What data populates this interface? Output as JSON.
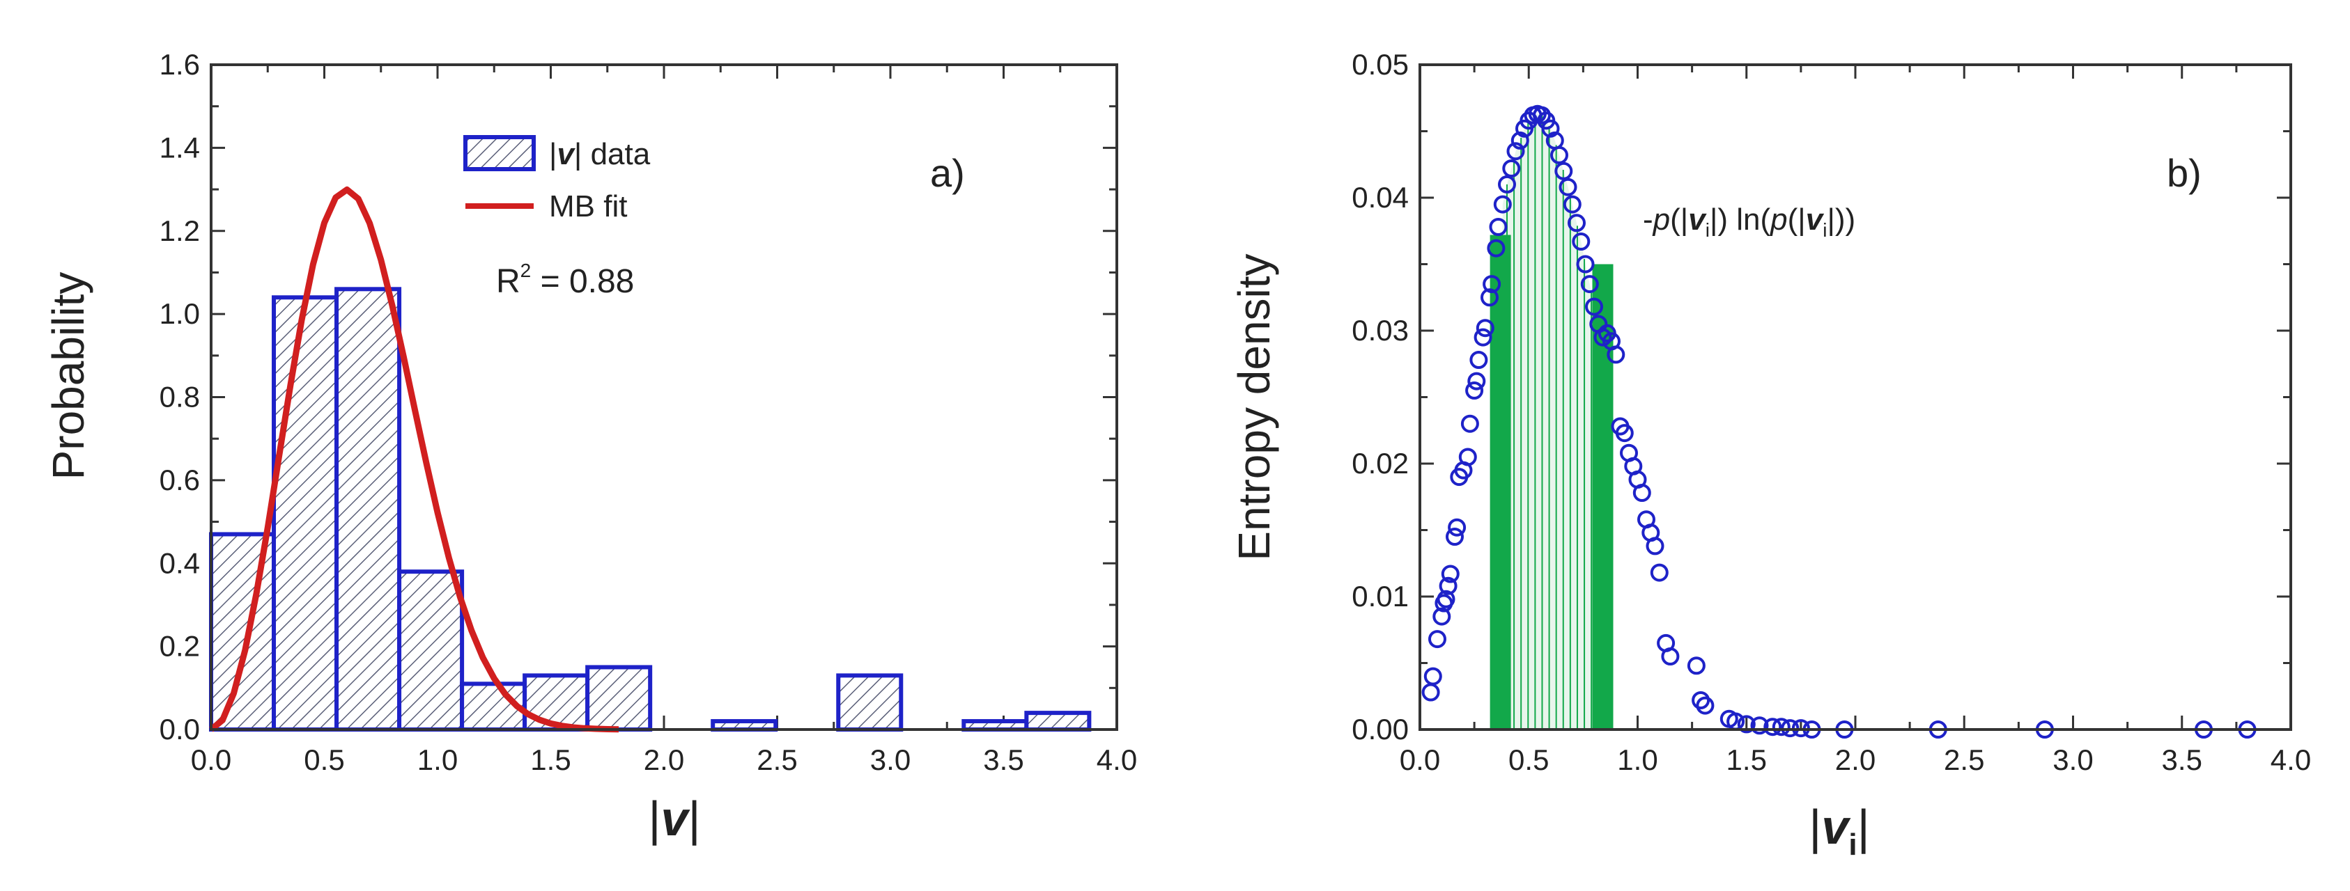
{
  "colors": {
    "bar_edge": "#1e22c8",
    "hatch": "#5a5f78",
    "bar_fill": "#ffffff",
    "fit_line": "#d11f1f",
    "marker": "#1e22c8",
    "green_bar": "#12a84a",
    "light_fill": "#e8f5ec",
    "axis": "#333333"
  },
  "chart_data": [
    {
      "id": "a",
      "type": "bar",
      "panel_label": "a)",
      "xlabel": "|v|",
      "ylabel": "Probability",
      "xlim": [
        0.0,
        4.0
      ],
      "ylim": [
        0.0,
        1.6
      ],
      "xticks": [
        "0.0",
        "0.5",
        "1.0",
        "1.5",
        "2.0",
        "2.5",
        "3.0",
        "3.5",
        "4.0"
      ],
      "yticks": [
        "0.0",
        "0.2",
        "0.4",
        "0.6",
        "0.8",
        "1.0",
        "1.2",
        "1.4",
        "1.6"
      ],
      "bin_edges": [
        0.0,
        0.277,
        0.554,
        0.831,
        1.108,
        1.385,
        1.662,
        1.939,
        2.216,
        2.493,
        2.77,
        3.047,
        3.324,
        3.601,
        3.878
      ],
      "values": [
        0.47,
        1.04,
        1.06,
        0.38,
        0.11,
        0.13,
        0.15,
        0.0,
        0.02,
        0.0,
        0.13,
        0.0,
        0.02,
        0.04
      ],
      "legend": [
        {
          "prefix": "|",
          "bold_symbol": "v",
          "suffix": "| data"
        },
        {
          "label": "MB fit"
        }
      ],
      "annotation": {
        "r_symbol": "R",
        "exponent": "2",
        "text": " = 0.88"
      },
      "fit": {
        "name": "MB fit",
        "x": [
          0.0,
          0.05,
          0.1,
          0.15,
          0.2,
          0.25,
          0.3,
          0.35,
          0.4,
          0.45,
          0.5,
          0.55,
          0.6,
          0.65,
          0.7,
          0.75,
          0.8,
          0.85,
          0.9,
          0.95,
          1.0,
          1.05,
          1.1,
          1.15,
          1.2,
          1.25,
          1.3,
          1.35,
          1.4,
          1.45,
          1.5,
          1.55,
          1.6,
          1.65,
          1.7,
          1.75,
          1.8
        ],
        "y": [
          0.0,
          0.0222,
          0.0872,
          0.1909,
          0.327,
          0.4862,
          0.6573,
          0.8278,
          0.9854,
          1.119,
          1.2194,
          1.2804,
          1.2994,
          1.2774,
          1.2188,
          1.1304,
          1.0204,
          0.8973,
          0.7691,
          0.6424,
          0.5226,
          0.4135,
          0.3181,
          0.2381,
          0.1733,
          0.1228,
          0.0845,
          0.0566,
          0.0369,
          0.0234,
          0.0144,
          0.0087,
          0.0051,
          0.0029,
          0.0016,
          0.0009,
          0.0005
        ]
      }
    },
    {
      "id": "b",
      "type": "scatter",
      "panel_label": "b)",
      "xlabel": "|v_i|",
      "ylabel": "Entropy density",
      "xlim": [
        0.0,
        4.0
      ],
      "ylim": [
        0.0,
        0.05
      ],
      "xticks": [
        "0.0",
        "0.5",
        "1.0",
        "1.5",
        "2.0",
        "2.5",
        "3.0",
        "3.5",
        "4.0"
      ],
      "yticks": [
        "0.00",
        "0.01",
        "0.02",
        "0.03",
        "0.04",
        "0.05"
      ],
      "annotation": {
        "minus": "-",
        "p1": "p",
        "open1": "(|",
        "v1": "v",
        "sub1": "i",
        "mid": "|) ln(",
        "p2": "p",
        "open2": "(|",
        "v2": "v",
        "sub2": "i",
        "close": "|))"
      },
      "x": [
        0.05,
        0.06,
        0.08,
        0.1,
        0.11,
        0.12,
        0.13,
        0.14,
        0.16,
        0.17,
        0.18,
        0.2,
        0.22,
        0.23,
        0.25,
        0.26,
        0.27,
        0.29,
        0.3,
        0.32,
        0.33,
        0.35,
        0.36,
        0.38,
        0.4,
        0.42,
        0.44,
        0.46,
        0.48,
        0.5,
        0.52,
        0.54,
        0.56,
        0.58,
        0.6,
        0.62,
        0.64,
        0.66,
        0.68,
        0.7,
        0.72,
        0.74,
        0.76,
        0.78,
        0.8,
        0.82,
        0.84,
        0.86,
        0.88,
        0.9,
        0.92,
        0.94,
        0.96,
        0.98,
        1.0,
        1.02,
        1.04,
        1.06,
        1.08,
        1.1,
        1.13,
        1.15,
        1.27,
        1.29,
        1.31,
        1.42,
        1.45,
        1.5,
        1.56,
        1.62,
        1.66,
        1.7,
        1.75,
        1.8,
        1.95,
        2.38,
        2.87,
        3.6,
        3.8
      ],
      "y": [
        0.0028,
        0.004,
        0.0068,
        0.0085,
        0.0095,
        0.0098,
        0.0108,
        0.0117,
        0.0145,
        0.0152,
        0.019,
        0.0195,
        0.0205,
        0.023,
        0.0255,
        0.0262,
        0.0278,
        0.0295,
        0.0302,
        0.0325,
        0.0335,
        0.0362,
        0.0378,
        0.0395,
        0.041,
        0.0422,
        0.0435,
        0.0443,
        0.0452,
        0.0458,
        0.0462,
        0.0463,
        0.0462,
        0.0458,
        0.0452,
        0.0443,
        0.0432,
        0.042,
        0.0408,
        0.0395,
        0.0381,
        0.0367,
        0.035,
        0.0335,
        0.0318,
        0.0305,
        0.0295,
        0.0298,
        0.0292,
        0.0282,
        0.0228,
        0.0223,
        0.0208,
        0.0198,
        0.0188,
        0.0178,
        0.0158,
        0.0148,
        0.0138,
        0.0118,
        0.0065,
        0.0055,
        0.0048,
        0.0022,
        0.0018,
        0.0008,
        0.0006,
        0.0004,
        0.0003,
        0.0002,
        0.0002,
        0.0001,
        0.0001,
        0.0,
        0.0,
        0.0,
        0.0,
        0.0,
        0.0
      ],
      "green_bar_x": [
        0.37,
        0.84
      ],
      "green_bar_heights": [
        0.0372,
        0.035
      ],
      "stripe_x_range": [
        0.4,
        0.82
      ],
      "stripe_count": 14
    }
  ]
}
